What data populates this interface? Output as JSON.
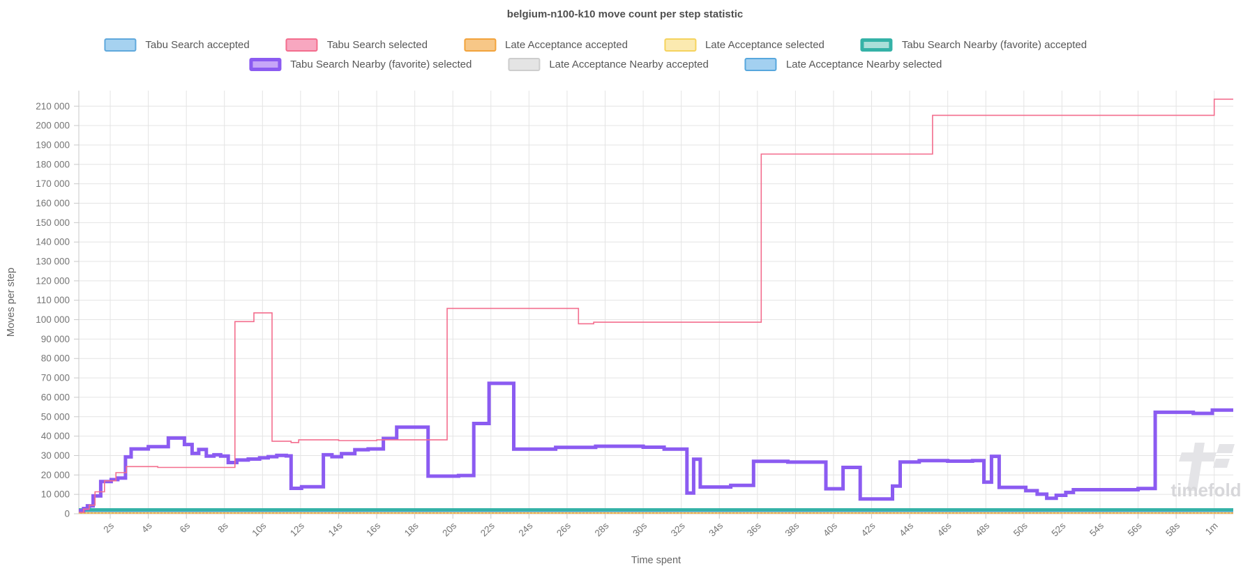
{
  "title": "belgium-n100-k10 move count per step statistic",
  "axes": {
    "y_label": "Moves per step",
    "x_label": "Time spent",
    "y_ticks": [
      {
        "v": 0,
        "label": "0"
      },
      {
        "v": 10000,
        "label": "10 000"
      },
      {
        "v": 20000,
        "label": "20 000"
      },
      {
        "v": 30000,
        "label": "30 000"
      },
      {
        "v": 40000,
        "label": "40 000"
      },
      {
        "v": 50000,
        "label": "50 000"
      },
      {
        "v": 60000,
        "label": "60 000"
      },
      {
        "v": 70000,
        "label": "70 000"
      },
      {
        "v": 80000,
        "label": "80 000"
      },
      {
        "v": 90000,
        "label": "90 000"
      },
      {
        "v": 100000,
        "label": "100 000"
      },
      {
        "v": 110000,
        "label": "110 000"
      },
      {
        "v": 120000,
        "label": "120 000"
      },
      {
        "v": 130000,
        "label": "130 000"
      },
      {
        "v": 140000,
        "label": "140 000"
      },
      {
        "v": 150000,
        "label": "150 000"
      },
      {
        "v": 160000,
        "label": "160 000"
      },
      {
        "v": 170000,
        "label": "170 000"
      },
      {
        "v": 180000,
        "label": "180 000"
      },
      {
        "v": 190000,
        "label": "190 000"
      },
      {
        "v": 200000,
        "label": "200 000"
      },
      {
        "v": 210000,
        "label": "210 000"
      }
    ],
    "x_ticks": [
      {
        "t": 2,
        "label": "2s"
      },
      {
        "t": 4,
        "label": "4s"
      },
      {
        "t": 6,
        "label": "6s"
      },
      {
        "t": 8,
        "label": "8s"
      },
      {
        "t": 10,
        "label": "10s"
      },
      {
        "t": 12,
        "label": "12s"
      },
      {
        "t": 14,
        "label": "14s"
      },
      {
        "t": 16,
        "label": "16s"
      },
      {
        "t": 18,
        "label": "18s"
      },
      {
        "t": 20,
        "label": "20s"
      },
      {
        "t": 22,
        "label": "22s"
      },
      {
        "t": 24,
        "label": "24s"
      },
      {
        "t": 26,
        "label": "26s"
      },
      {
        "t": 28,
        "label": "28s"
      },
      {
        "t": 30,
        "label": "30s"
      },
      {
        "t": 32,
        "label": "32s"
      },
      {
        "t": 34,
        "label": "34s"
      },
      {
        "t": 36,
        "label": "36s"
      },
      {
        "t": 38,
        "label": "38s"
      },
      {
        "t": 40,
        "label": "40s"
      },
      {
        "t": 42,
        "label": "42s"
      },
      {
        "t": 44,
        "label": "44s"
      },
      {
        "t": 46,
        "label": "46s"
      },
      {
        "t": 48,
        "label": "48s"
      },
      {
        "t": 50,
        "label": "50s"
      },
      {
        "t": 52,
        "label": "52s"
      },
      {
        "t": 54,
        "label": "54s"
      },
      {
        "t": 56,
        "label": "56s"
      },
      {
        "t": 58,
        "label": "58s"
      },
      {
        "t": 60,
        "label": "1m"
      }
    ]
  },
  "watermark": {
    "text": "timefold",
    "glyph_color": "#e4e4e7",
    "text_color": "#d7d7da"
  },
  "chart_data": {
    "type": "line",
    "step_mode": "after",
    "title": "belgium-n100-k10 move count per step statistic",
    "xlabel": "Time spent",
    "ylabel": "Moves per step",
    "xlim": [
      0.35,
      61.0
    ],
    "ylim": [
      0,
      218000
    ],
    "grid": true,
    "legend_position": "top",
    "series": [
      {
        "name": "Tabu Search accepted",
        "color": "#5fa8dc",
        "fill": "#a6d2f0",
        "width": 3,
        "z": 4,
        "row": 1,
        "thick": false,
        "points": [
          [
            0.35,
            1400
          ],
          [
            0.6,
            2800
          ]
        ],
        "end": 1.0
      },
      {
        "name": "Tabu Search selected",
        "color": "#f36d8d",
        "fill": "#f8a7c0",
        "width": 1.6,
        "z": 7,
        "row": 1,
        "thick": false,
        "points": [
          [
            0.35,
            700
          ],
          [
            0.6,
            2400
          ],
          [
            0.9,
            4400
          ],
          [
            1.2,
            11300
          ],
          [
            1.7,
            17000
          ],
          [
            2.3,
            21200
          ],
          [
            2.85,
            24300
          ],
          [
            4.5,
            23900
          ],
          [
            8.55,
            99000
          ],
          [
            9.55,
            103500
          ],
          [
            10.5,
            37400
          ],
          [
            11.5,
            36700
          ],
          [
            11.9,
            38100
          ],
          [
            14.0,
            37700
          ],
          [
            16.0,
            38100
          ],
          [
            19.7,
            105800
          ],
          [
            26.6,
            97900
          ],
          [
            27.4,
            98700
          ],
          [
            36.2,
            185300
          ],
          [
            45.2,
            205300
          ],
          [
            60.0,
            213600
          ]
        ],
        "end": 61.0
      },
      {
        "name": "Late Acceptance accepted",
        "color": "#f2a33c",
        "fill": "#f7c787",
        "width": 1.8,
        "z": 1,
        "row": 1,
        "thick": false,
        "points": [
          [
            0.35,
            420
          ]
        ],
        "end": 61.0
      },
      {
        "name": "Late Acceptance selected",
        "color": "#f5d35e",
        "fill": "#fbeab0",
        "width": 1.8,
        "dash": "2 3",
        "z": 2,
        "row": 1,
        "thick": false,
        "points": [
          [
            0.35,
            400
          ]
        ],
        "end": 61.0
      },
      {
        "name": "Tabu Search Nearby (favorite) accepted",
        "color": "#35b2a7",
        "fill": "#aadfd9",
        "width": 4.5,
        "z": 5,
        "row": 1,
        "thick": true,
        "points": [
          [
            0.35,
            2100
          ]
        ],
        "end": 61.0
      },
      {
        "name": "Tabu Search Nearby (favorite) selected",
        "color": "#8b5bf1",
        "fill": "#c6a6f8",
        "width": 5,
        "z": 6,
        "row": 2,
        "thick": true,
        "points": [
          [
            0.35,
            1600
          ],
          [
            0.6,
            2700
          ],
          [
            0.8,
            4100
          ],
          [
            1.1,
            9200
          ],
          [
            1.5,
            16600
          ],
          [
            2.05,
            17600
          ],
          [
            2.4,
            18400
          ],
          [
            2.8,
            29300
          ],
          [
            3.1,
            33400
          ],
          [
            4.0,
            34600
          ],
          [
            5.05,
            39000
          ],
          [
            5.9,
            35700
          ],
          [
            6.3,
            31100
          ],
          [
            6.65,
            33100
          ],
          [
            7.05,
            29700
          ],
          [
            7.45,
            30400
          ],
          [
            7.8,
            29700
          ],
          [
            8.2,
            26400
          ],
          [
            8.65,
            27700
          ],
          [
            9.25,
            28200
          ],
          [
            9.85,
            28800
          ],
          [
            10.3,
            29400
          ],
          [
            10.75,
            30100
          ],
          [
            11.25,
            29800
          ],
          [
            11.5,
            13100
          ],
          [
            12.05,
            13900
          ],
          [
            13.2,
            30400
          ],
          [
            13.65,
            29400
          ],
          [
            14.15,
            31000
          ],
          [
            14.85,
            33000
          ],
          [
            15.55,
            33400
          ],
          [
            16.35,
            38800
          ],
          [
            17.05,
            44600
          ],
          [
            18.7,
            19400
          ],
          [
            20.3,
            19700
          ],
          [
            21.1,
            46500
          ],
          [
            21.9,
            67200
          ],
          [
            23.2,
            33300
          ],
          [
            25.4,
            34200
          ],
          [
            27.5,
            34800
          ],
          [
            30.0,
            34300
          ],
          [
            31.1,
            33300
          ],
          [
            32.3,
            10700
          ],
          [
            32.65,
            28100
          ],
          [
            33.0,
            13800
          ],
          [
            34.6,
            14600
          ],
          [
            35.8,
            27000
          ],
          [
            37.6,
            26600
          ],
          [
            39.6,
            12900
          ],
          [
            40.5,
            23900
          ],
          [
            41.4,
            7600
          ],
          [
            43.1,
            14300
          ],
          [
            43.5,
            26700
          ],
          [
            44.5,
            27400
          ],
          [
            46.0,
            27100
          ],
          [
            47.3,
            27400
          ],
          [
            47.9,
            16300
          ],
          [
            48.3,
            29600
          ],
          [
            48.7,
            13600
          ],
          [
            50.1,
            11900
          ],
          [
            50.7,
            10100
          ],
          [
            51.2,
            8000
          ],
          [
            51.7,
            9500
          ],
          [
            52.2,
            11000
          ],
          [
            52.6,
            12400
          ],
          [
            56.0,
            13000
          ],
          [
            56.9,
            52300
          ],
          [
            58.9,
            51700
          ],
          [
            59.9,
            53400
          ]
        ],
        "end": 61.0
      },
      {
        "name": "Late Acceptance Nearby accepted",
        "color": "#cdcdcd",
        "fill": "#e4e4e4",
        "width": 1.5,
        "z": 0,
        "row": 2,
        "thick": false,
        "points": [
          [
            0.35,
            1900
          ]
        ],
        "end": 61.0
      },
      {
        "name": "Late Acceptance Nearby selected",
        "color": "#57a7dd",
        "fill": "#a3d0f0",
        "width": 2.5,
        "z": 3,
        "row": 2,
        "thick": false,
        "points": [
          [
            0.35,
            1300
          ]
        ],
        "end": 61.0
      }
    ]
  }
}
